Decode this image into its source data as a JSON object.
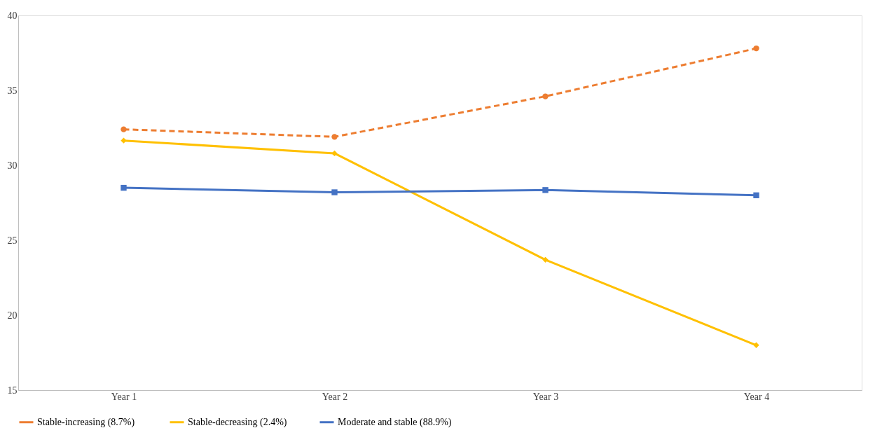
{
  "chart_data": {
    "type": "line",
    "categories": [
      "Year 1",
      "Year 2",
      "Year 3",
      "Year 4"
    ],
    "series": [
      {
        "name": "Stable-increasing  (8.7%)",
        "color": "#ed7d31",
        "values": [
          32.4,
          31.9,
          34.6,
          37.8
        ],
        "marker": "circle",
        "line_style": "dashed"
      },
      {
        "name": "Stable-decreasing (2.4%)",
        "color": "#ffc000",
        "values": [
          31.65,
          30.8,
          23.7,
          18.0
        ],
        "marker": "diamond",
        "line_style": "solid"
      },
      {
        "name": "Moderate and stable (88.9%)",
        "color": "#4472c4",
        "values": [
          28.5,
          28.2,
          28.35,
          28.0
        ],
        "marker": "square",
        "line_style": "solid"
      }
    ],
    "ylim": [
      15,
      40
    ],
    "yticks": [
      15,
      20,
      25,
      30,
      35,
      40
    ],
    "grid": false,
    "legend": "bottom"
  }
}
